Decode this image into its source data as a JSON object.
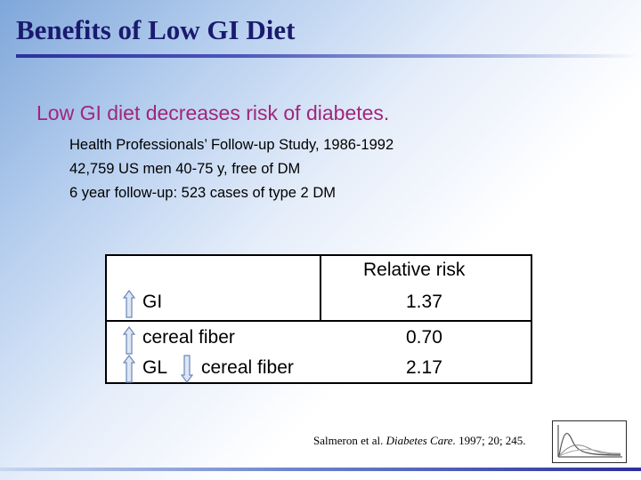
{
  "slide": {
    "title": "Benefits of Low GI Diet",
    "headline": "Low GI diet decreases risk of diabetes.",
    "details": [
      "Health Professionals’ Follow-up Study, 1986-1992",
      "42,759 US men 40-75 y, free of DM",
      "6 year follow-up: 523 cases of type 2 DM"
    ]
  },
  "table": {
    "header": "Relative risk",
    "rows": [
      {
        "label": "GI",
        "value": "1.37"
      },
      {
        "label": "cereal fiber",
        "value": "0.70"
      },
      {
        "label_prefix": "GL",
        "label_suffix": "cereal fiber",
        "value": "2.17"
      }
    ]
  },
  "citation": {
    "authors": "Salmeron et al.",
    "journal": "Diabetes Care.",
    "rest": "1997; 20; 245."
  },
  "colors": {
    "title": "#1a1a6e",
    "headline": "#a0267b",
    "arrow_fill": "#dde6f5",
    "arrow_stroke": "#6c86b8"
  }
}
